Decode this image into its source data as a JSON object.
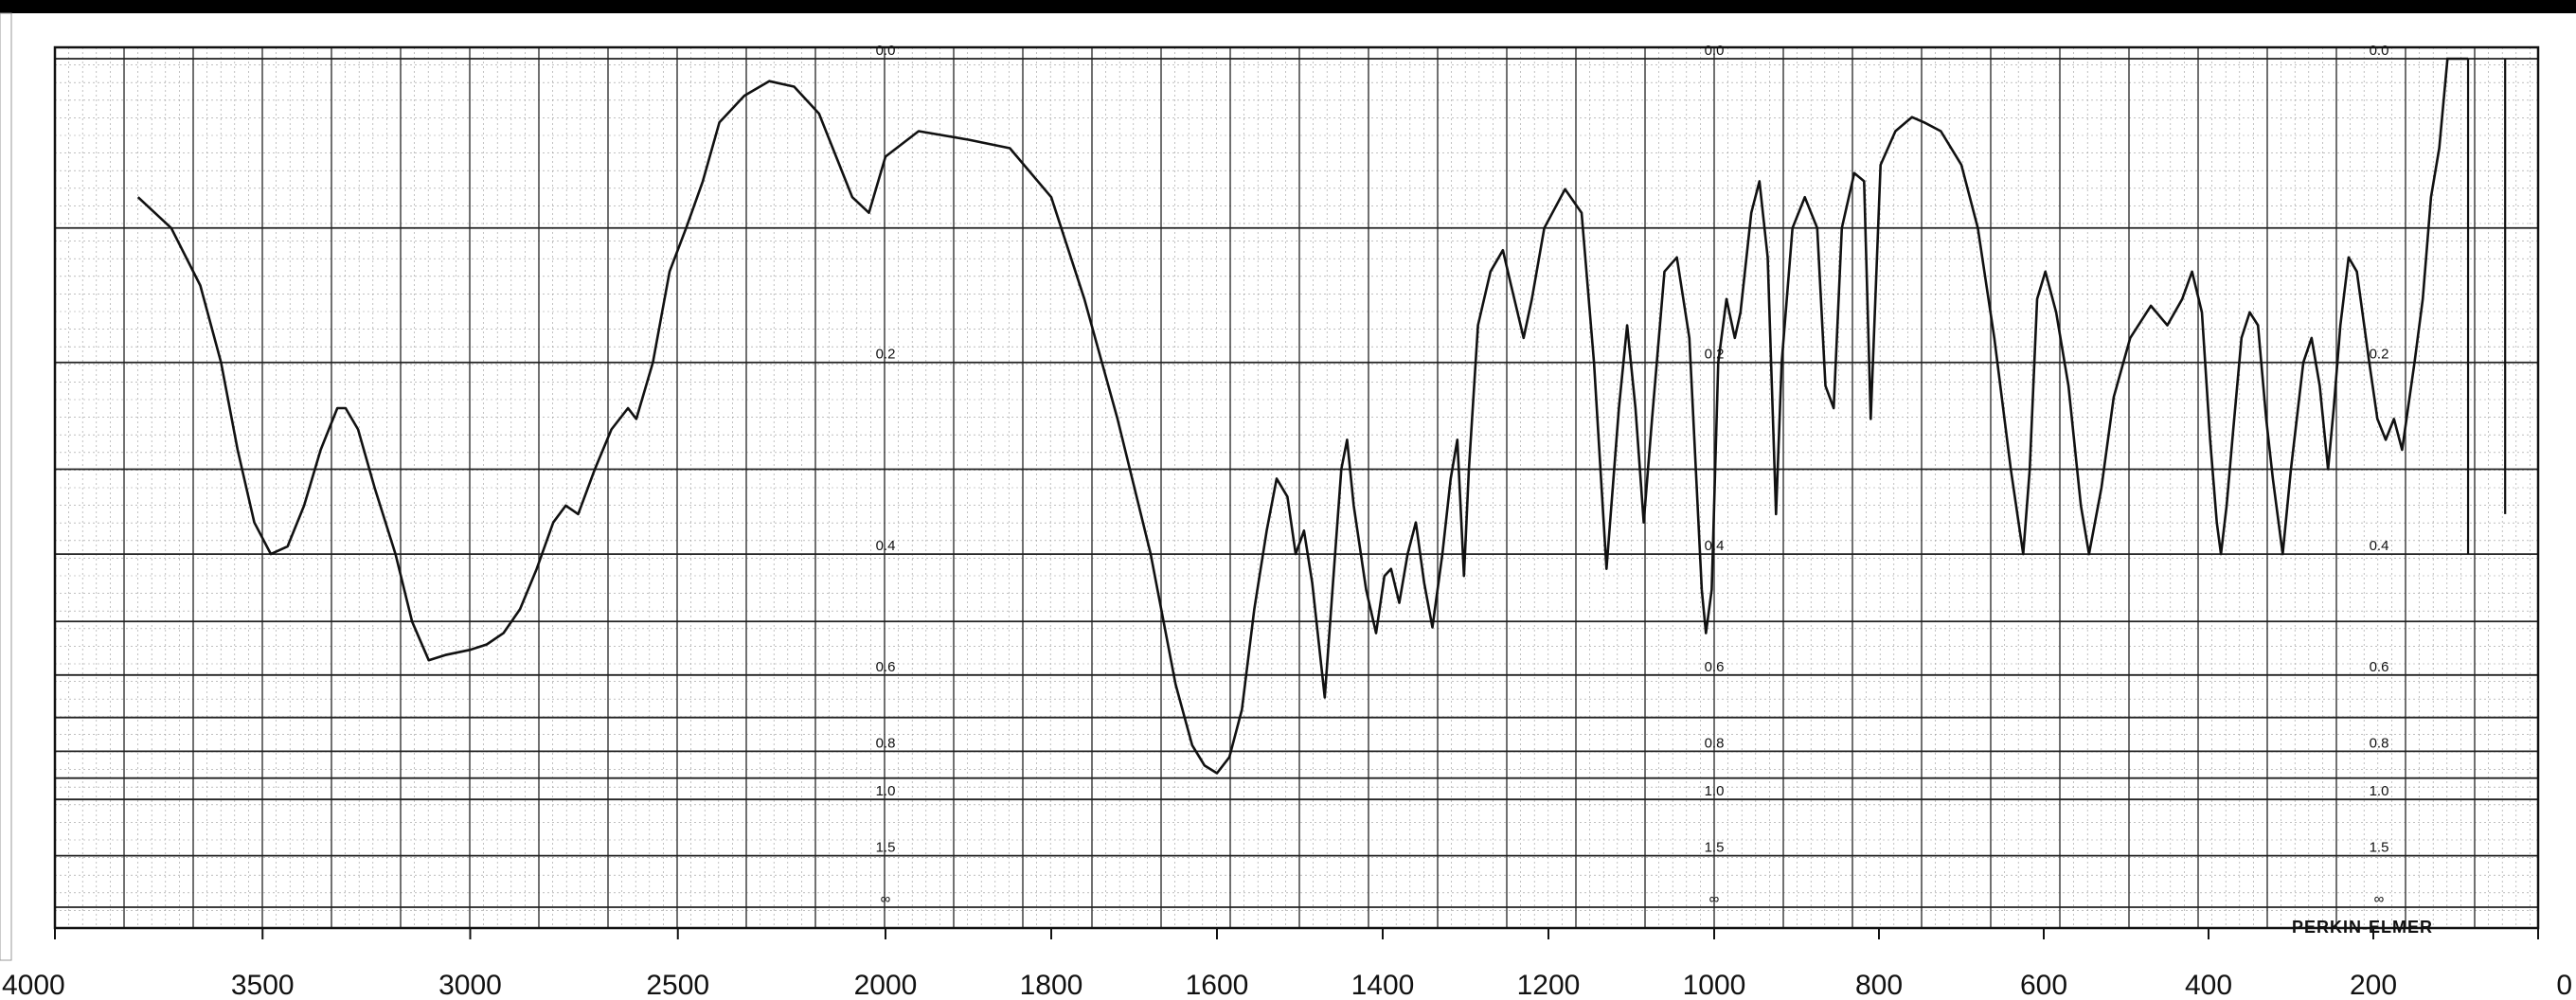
{
  "chart_data": {
    "type": "line",
    "title": "",
    "xlabel": "",
    "ylabel": "",
    "x_axis": {
      "segments": [
        {
          "from": 4000,
          "to": 2000
        },
        {
          "from": 2000,
          "to": 1000
        },
        {
          "from": 1000,
          "to": 0
        }
      ],
      "tick_labels": [
        "4000",
        "3500",
        "3000",
        "2500",
        "2000",
        "1800",
        "1600",
        "1400",
        "1200",
        "1000",
        "800",
        "600",
        "400",
        "200",
        "0"
      ]
    },
    "y_axis": {
      "kind": "absorbance",
      "ylim": [
        0.0,
        1.5
      ],
      "tick_labels": [
        "0.0",
        "0.2",
        "0.4",
        "0.6",
        "0.8",
        "1.0",
        "1.5",
        "∞"
      ]
    },
    "grid": true,
    "brand": "PERKIN-ELMER",
    "series": [
      {
        "values_in": "wavenumber_cm-1 vs absorbance",
        "points": [
          [
            3800,
            0.08
          ],
          [
            3720,
            0.1
          ],
          [
            3650,
            0.14
          ],
          [
            3600,
            0.2
          ],
          [
            3560,
            0.28
          ],
          [
            3520,
            0.36
          ],
          [
            3480,
            0.4
          ],
          [
            3440,
            0.39
          ],
          [
            3400,
            0.34
          ],
          [
            3360,
            0.28
          ],
          [
            3320,
            0.24
          ],
          [
            3300,
            0.24
          ],
          [
            3270,
            0.26
          ],
          [
            3230,
            0.32
          ],
          [
            3180,
            0.4
          ],
          [
            3140,
            0.5
          ],
          [
            3100,
            0.57
          ],
          [
            3060,
            0.56
          ],
          [
            3000,
            0.55
          ],
          [
            2960,
            0.54
          ],
          [
            2920,
            0.52
          ],
          [
            2880,
            0.48
          ],
          [
            2840,
            0.42
          ],
          [
            2800,
            0.36
          ],
          [
            2770,
            0.34
          ],
          [
            2740,
            0.35
          ],
          [
            2700,
            0.3
          ],
          [
            2660,
            0.26
          ],
          [
            2620,
            0.24
          ],
          [
            2600,
            0.25
          ],
          [
            2560,
            0.2
          ],
          [
            2520,
            0.13
          ],
          [
            2480,
            0.1
          ],
          [
            2440,
            0.07
          ],
          [
            2400,
            0.035
          ],
          [
            2340,
            0.02
          ],
          [
            2280,
            0.012
          ],
          [
            2220,
            0.015
          ],
          [
            2160,
            0.03
          ],
          [
            2080,
            0.08
          ],
          [
            2040,
            0.09
          ],
          [
            2000,
            0.055
          ],
          [
            1960,
            0.04
          ],
          [
            1900,
            0.045
          ],
          [
            1850,
            0.05
          ],
          [
            1800,
            0.08
          ],
          [
            1760,
            0.15
          ],
          [
            1720,
            0.25
          ],
          [
            1680,
            0.4
          ],
          [
            1650,
            0.62
          ],
          [
            1630,
            0.78
          ],
          [
            1615,
            0.85
          ],
          [
            1600,
            0.88
          ],
          [
            1585,
            0.82
          ],
          [
            1570,
            0.68
          ],
          [
            1555,
            0.48
          ],
          [
            1540,
            0.37
          ],
          [
            1528,
            0.31
          ],
          [
            1515,
            0.33
          ],
          [
            1505,
            0.4
          ],
          [
            1495,
            0.37
          ],
          [
            1485,
            0.44
          ],
          [
            1470,
            0.65
          ],
          [
            1460,
            0.44
          ],
          [
            1450,
            0.3
          ],
          [
            1443,
            0.27
          ],
          [
            1435,
            0.34
          ],
          [
            1420,
            0.45
          ],
          [
            1408,
            0.52
          ],
          [
            1398,
            0.43
          ],
          [
            1390,
            0.42
          ],
          [
            1380,
            0.47
          ],
          [
            1370,
            0.4
          ],
          [
            1360,
            0.36
          ],
          [
            1350,
            0.44
          ],
          [
            1340,
            0.51
          ],
          [
            1328,
            0.4
          ],
          [
            1318,
            0.31
          ],
          [
            1310,
            0.27
          ],
          [
            1302,
            0.43
          ],
          [
            1296,
            0.3
          ],
          [
            1285,
            0.17
          ],
          [
            1270,
            0.13
          ],
          [
            1255,
            0.115
          ],
          [
            1245,
            0.14
          ],
          [
            1230,
            0.18
          ],
          [
            1220,
            0.15
          ],
          [
            1205,
            0.1
          ],
          [
            1180,
            0.075
          ],
          [
            1160,
            0.09
          ],
          [
            1145,
            0.2
          ],
          [
            1130,
            0.42
          ],
          [
            1115,
            0.24
          ],
          [
            1105,
            0.17
          ],
          [
            1095,
            0.24
          ],
          [
            1085,
            0.36
          ],
          [
            1075,
            0.25
          ],
          [
            1060,
            0.13
          ],
          [
            1045,
            0.12
          ],
          [
            1030,
            0.18
          ],
          [
            1015,
            0.45
          ],
          [
            1010,
            0.52
          ],
          [
            1003,
            0.45
          ],
          [
            995,
            0.2
          ],
          [
            985,
            0.15
          ],
          [
            975,
            0.18
          ],
          [
            968,
            0.16
          ],
          [
            955,
            0.09
          ],
          [
            945,
            0.07
          ],
          [
            935,
            0.12
          ],
          [
            925,
            0.35
          ],
          [
            918,
            0.2
          ],
          [
            905,
            0.1
          ],
          [
            890,
            0.08
          ],
          [
            875,
            0.1
          ],
          [
            865,
            0.22
          ],
          [
            855,
            0.24
          ],
          [
            845,
            0.1
          ],
          [
            830,
            0.065
          ],
          [
            818,
            0.07
          ],
          [
            810,
            0.25
          ],
          [
            798,
            0.06
          ],
          [
            780,
            0.04
          ],
          [
            760,
            0.032
          ],
          [
            745,
            0.035
          ],
          [
            725,
            0.04
          ],
          [
            700,
            0.06
          ],
          [
            680,
            0.1
          ],
          [
            660,
            0.18
          ],
          [
            640,
            0.3
          ],
          [
            625,
            0.4
          ],
          [
            617,
            0.3
          ],
          [
            608,
            0.15
          ],
          [
            598,
            0.13
          ],
          [
            585,
            0.16
          ],
          [
            570,
            0.22
          ],
          [
            555,
            0.34
          ],
          [
            545,
            0.4
          ],
          [
            530,
            0.32
          ],
          [
            515,
            0.23
          ],
          [
            495,
            0.18
          ],
          [
            470,
            0.155
          ],
          [
            450,
            0.17
          ],
          [
            432,
            0.15
          ],
          [
            420,
            0.13
          ],
          [
            408,
            0.16
          ],
          [
            398,
            0.27
          ],
          [
            390,
            0.36
          ],
          [
            385,
            0.4
          ],
          [
            378,
            0.34
          ],
          [
            370,
            0.26
          ],
          [
            360,
            0.18
          ],
          [
            350,
            0.16
          ],
          [
            340,
            0.17
          ],
          [
            330,
            0.25
          ],
          [
            322,
            0.31
          ],
          [
            310,
            0.4
          ],
          [
            300,
            0.3
          ],
          [
            285,
            0.2
          ],
          [
            275,
            0.18
          ],
          [
            265,
            0.22
          ],
          [
            255,
            0.3
          ],
          [
            248,
            0.24
          ],
          [
            240,
            0.17
          ],
          [
            230,
            0.12
          ],
          [
            220,
            0.13
          ],
          [
            205,
            0.2
          ],
          [
            195,
            0.25
          ],
          [
            185,
            0.27
          ],
          [
            175,
            0.25
          ],
          [
            165,
            0.28
          ],
          [
            150,
            0.2
          ],
          [
            140,
            0.15
          ],
          [
            130,
            0.08
          ],
          [
            120,
            0.05
          ],
          [
            110,
            0.0
          ],
          [
            100,
            0.0
          ],
          [
            85,
            0.0
          ]
        ]
      }
    ]
  }
}
